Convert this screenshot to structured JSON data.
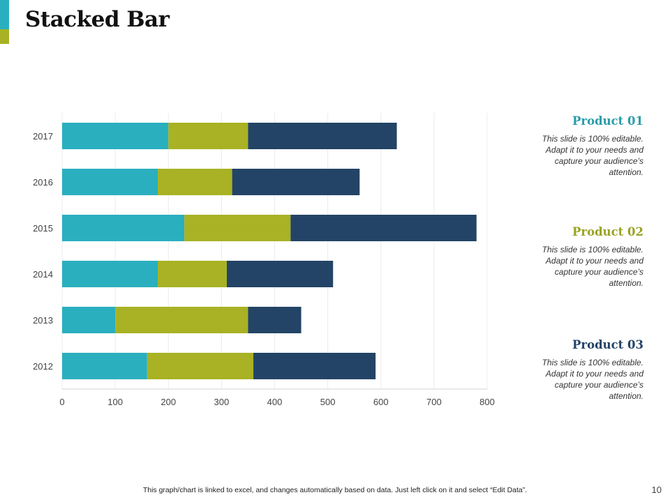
{
  "slide": {
    "title": "Stacked Bar",
    "footer_note": "This graph/chart is linked to excel,  and changes automatically based on data. Just left click on it and select “Edit Data”.",
    "page_number": "10"
  },
  "colors": {
    "accent_top": "#2aafbf",
    "accent_bottom": "#a8b224",
    "product_01": "#2aafbf",
    "product_02": "#a8b224",
    "product_03": "#234466"
  },
  "legend": [
    {
      "title": "Product 01",
      "description": "This slide is 100% editable. Adapt it to your needs and capture your audience’s attention.",
      "title_color": "#2a9ca9"
    },
    {
      "title": "Product 02",
      "description": "This slide is 100% editable. Adapt it to your needs and capture your audience’s attention.",
      "title_color": "#9aa322"
    },
    {
      "title": "Product 03",
      "description": "This slide is 100% editable. Adapt it to your needs and capture your audience’s attention.",
      "title_color": "#234466"
    }
  ],
  "chart_data": {
    "type": "bar",
    "orientation": "horizontal",
    "stacked": true,
    "title": "",
    "xlabel": "",
    "ylabel": "",
    "categories": [
      "2012",
      "2013",
      "2014",
      "2015",
      "2016",
      "2017"
    ],
    "series": [
      {
        "name": "Product 01",
        "color": "#2aafbf",
        "values": [
          160,
          100,
          180,
          230,
          180,
          200
        ]
      },
      {
        "name": "Product 02",
        "color": "#a8b224",
        "values": [
          200,
          250,
          130,
          200,
          140,
          150
        ]
      },
      {
        "name": "Product 03",
        "color": "#234466",
        "values": [
          230,
          100,
          200,
          350,
          240,
          280
        ]
      }
    ],
    "xlim": [
      0,
      800
    ],
    "xticks": [
      "0",
      "100",
      "200",
      "300",
      "400",
      "500",
      "600",
      "700",
      "800"
    ],
    "grid": true
  }
}
